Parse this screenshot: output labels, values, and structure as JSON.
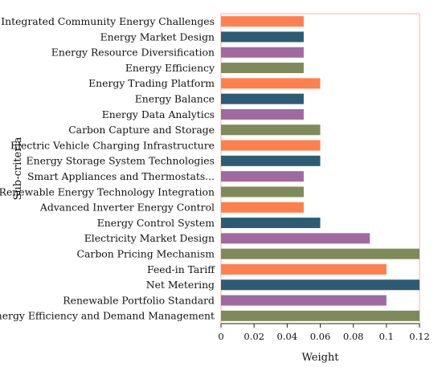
{
  "chart_data": {
    "type": "bar",
    "orientation": "horizontal",
    "title": "",
    "xlabel": "Weight",
    "ylabel": "Sub-criteria",
    "xlim": [
      0,
      0.12
    ],
    "xticks": [
      "0",
      "0.02",
      "0.04",
      "0.06",
      "0.08",
      "0.1",
      "0.12"
    ],
    "xtick_values": [
      0,
      0.02,
      0.04,
      0.06,
      0.08,
      0.1,
      0.12
    ],
    "grid": false,
    "categories": [
      "Integrated Community Energy Challenges",
      "Energy Market Design",
      "Energy Resource Diversification",
      "Energy Efficiency",
      "Energy Trading Platform",
      "Energy Balance",
      "Energy Data Analytics",
      "Carbon Capture and Storage",
      "Electric Vehicle Charging Infrastructure",
      "Energy Storage System Technologies",
      "Smart Appliances and Thermostats...",
      "Renewable Energy Technology Integration",
      "Advanced Inverter Energy Control",
      "Energy Control System",
      "Electricity Market Design",
      "Carbon Pricing Mechanism",
      "Feed-in Tariff",
      "Net Metering",
      "Renewable Portfolio Standard",
      "Energy Efficiency and Demand Management"
    ],
    "values": [
      0.05,
      0.05,
      0.05,
      0.05,
      0.06,
      0.05,
      0.05,
      0.06,
      0.06,
      0.06,
      0.05,
      0.05,
      0.05,
      0.06,
      0.09,
      0.12,
      0.1,
      0.12,
      0.1,
      0.12
    ],
    "colors": [
      "#ff7f4f",
      "#2e5b74",
      "#a06aa0",
      "#7f8a5a",
      "#ff7f4f",
      "#2e5b74",
      "#a06aa0",
      "#7f8a5a",
      "#ff7f4f",
      "#2e5b74",
      "#a06aa0",
      "#7f8a5a",
      "#ff7f4f",
      "#2e5b74",
      "#a06aa0",
      "#7f8a5a",
      "#ff7f4f",
      "#2e5b74",
      "#a06aa0",
      "#7f8a5a"
    ],
    "frame_color": "#f2b6a6"
  }
}
